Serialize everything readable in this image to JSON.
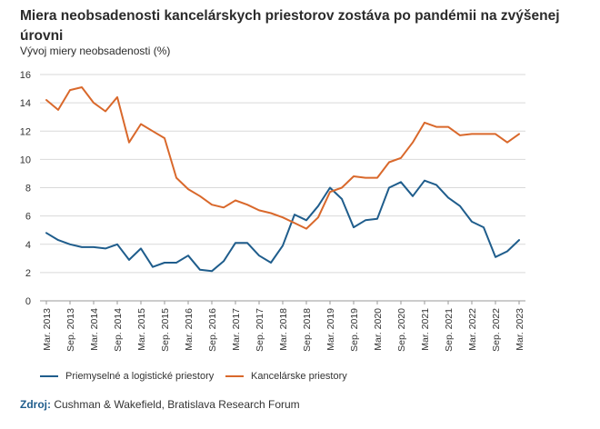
{
  "header": {
    "title": "Miera neobsadenosti kancelárskych priestorov zostáva po pandémii na zvýšenej úrovni",
    "subtitle": "Vývoj miery neobsadenosti (%)"
  },
  "source": {
    "label": "Zdroj:",
    "text": "Cushman & Wakefield, Bratislava Research Forum"
  },
  "chart_data": {
    "type": "line",
    "title": "Miera neobsadenosti kancelárskych priestorov zostáva po pandémii na zvýšenej úrovni",
    "subtitle": "Vývoj miery neobsadenosti (%)",
    "ylim": [
      0,
      16
    ],
    "yticks": [
      0,
      2,
      4,
      6,
      8,
      10,
      12,
      14,
      16
    ],
    "grid": "horizontal",
    "legend_position": "bottom",
    "x_tick_labels": [
      "Mar. 2013",
      "Sep. 2013",
      "Mar. 2014",
      "Sep. 2014",
      "Mar. 2015",
      "Sep. 2015",
      "Mar. 2016",
      "Sep. 2016",
      "Mar. 2017",
      "Sep. 2017",
      "Mar. 2018",
      "Sep. 2018",
      "Mar. 2019",
      "Sep. 2019",
      "Mar. 2020",
      "Sep. 2020",
      "Mar. 2021",
      "Sep. 2021",
      "Mar. 2022",
      "Sep. 2022",
      "Mar. 2023"
    ],
    "x": [
      "Mar. 2013",
      "Jun. 2013",
      "Sep. 2013",
      "Dec. 2013",
      "Mar. 2014",
      "Jun. 2014",
      "Sep. 2014",
      "Dec. 2014",
      "Mar. 2015",
      "Jun. 2015",
      "Sep. 2015",
      "Dec. 2015",
      "Mar. 2016",
      "Jun. 2016",
      "Sep. 2016",
      "Dec. 2016",
      "Mar. 2017",
      "Jun. 2017",
      "Sep. 2017",
      "Dec. 2017",
      "Mar. 2018",
      "Jun. 2018",
      "Sep. 2018",
      "Dec. 2018",
      "Mar. 2019",
      "Jun. 2019",
      "Sep. 2019",
      "Dec. 2019",
      "Mar. 2020",
      "Jun. 2020",
      "Sep. 2020",
      "Dec. 2020",
      "Mar. 2021",
      "Jun. 2021",
      "Sep. 2021",
      "Dec. 2021",
      "Mar. 2022",
      "Jun. 2022",
      "Sep. 2022",
      "Dec. 2022",
      "Mar. 2023"
    ],
    "series": [
      {
        "name": "Priemyselné a logistické priestory",
        "color": "#1f5d8c",
        "values": [
          4.8,
          4.3,
          4.0,
          3.8,
          3.8,
          3.7,
          4.0,
          2.9,
          3.7,
          2.4,
          2.7,
          2.7,
          3.2,
          2.2,
          2.1,
          2.8,
          4.1,
          4.1,
          3.2,
          2.7,
          3.9,
          6.1,
          5.7,
          6.7,
          8.0,
          7.2,
          5.2,
          5.7,
          5.8,
          8.0,
          8.4,
          7.4,
          8.5,
          8.2,
          7.3,
          6.7,
          5.6,
          5.2,
          3.1,
          3.5,
          4.3
        ]
      },
      {
        "name": "Kancelárske priestory",
        "color": "#d9682b",
        "values": [
          14.2,
          13.5,
          14.9,
          15.1,
          14.0,
          13.4,
          14.4,
          11.2,
          12.5,
          12.0,
          11.5,
          8.7,
          7.9,
          7.4,
          6.8,
          6.6,
          7.1,
          6.8,
          6.4,
          6.2,
          5.9,
          5.5,
          5.1,
          5.9,
          7.7,
          8.0,
          8.8,
          8.7,
          8.7,
          9.8,
          10.1,
          11.2,
          12.6,
          12.3,
          12.3,
          11.7,
          11.8,
          11.8,
          11.8,
          11.2,
          11.8
        ]
      }
    ]
  }
}
